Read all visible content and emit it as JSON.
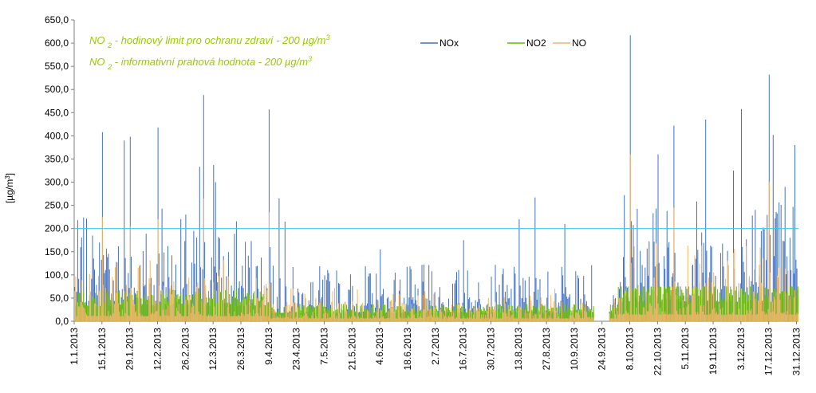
{
  "chart_data": {
    "type": "line",
    "title": "",
    "ylabel": "[µg/m³]",
    "ylabel_main": "[µg/m",
    "ylabel_sup": "3",
    "ylabel_close": "]",
    "ylim": [
      0,
      650
    ],
    "yticks": [
      "0,0",
      "50,0",
      "100,0",
      "150,0",
      "200,0",
      "250,0",
      "300,0",
      "350,0",
      "400,0",
      "450,0",
      "500,0",
      "550,0",
      "600,0",
      "650,0"
    ],
    "xlim": [
      "1.1.2013",
      "31.12.2013"
    ],
    "xticks": [
      "1.1.2013",
      "15.1.2013",
      "29.1.2013",
      "12.2.2013",
      "26.2.2013",
      "12.3.2013",
      "26.3.2013",
      "9.4.2013",
      "23.4.2013",
      "7.5.2013",
      "21.5.2013",
      "4.6.2013",
      "18.6.2013",
      "2.7.2013",
      "16.7.2013",
      "30.7.2013",
      "13.8.2013",
      "27.8.2013",
      "10.9.2013",
      "24.9.2013",
      "8.10.2013",
      "22.10.2013",
      "5.11.2013",
      "19.11.2013",
      "3.12.2013",
      "17.12.2013",
      "31.12.2013"
    ],
    "grid": false,
    "legend": "top-center",
    "limit_line": {
      "value": 200,
      "color": "#33CCEE"
    },
    "annotations": [
      {
        "text": "NO",
        "sub": "2",
        "rest": " - hodinový limit pro ochranu zdraví - 200 µg/m",
        "sup": "3"
      },
      {
        "text": "NO",
        "sub": "2",
        "rest": " - informativní prahová hodnota - 200 µg/m",
        "sup": "3"
      }
    ],
    "annotation_color": "#99CC00",
    "series": [
      {
        "name": "NOx",
        "color": "#4472C4",
        "peaks": [
          [
            "15.1.2013",
            408
          ],
          [
            "26.1.2013",
            390
          ],
          [
            "29.1.2013",
            398
          ],
          [
            "12.2.2013",
            418
          ],
          [
            "14.2.2013",
            243
          ],
          [
            "26.2.2013",
            230
          ],
          [
            "5.3.2013",
            333
          ],
          [
            "7.3.2013",
            488
          ],
          [
            "12.3.2013",
            337
          ],
          [
            "13.3.2013",
            300
          ],
          [
            "9.4.2013",
            457
          ],
          [
            "14.4.2013",
            265
          ],
          [
            "17.4.2013",
            215
          ],
          [
            "4.6.2013",
            155
          ],
          [
            "16.7.2013",
            175
          ],
          [
            "13.8.2013",
            220
          ],
          [
            "21.8.2013",
            267
          ],
          [
            "5.9.2013",
            210
          ],
          [
            "8.10.2013",
            617
          ],
          [
            "5.10.2013",
            272
          ],
          [
            "22.10.2013",
            360
          ],
          [
            "30.10.2013",
            422
          ],
          [
            "15.11.2013",
            435
          ],
          [
            "29.11.2013",
            325
          ],
          [
            "3.12.2013",
            458
          ],
          [
            "10.12.2013",
            240
          ],
          [
            "17.12.2013",
            532
          ],
          [
            "19.12.2013",
            402
          ],
          [
            "25.12.2013",
            290
          ],
          [
            "30.12.2013",
            380
          ]
        ]
      },
      {
        "name": "NO2",
        "color": "#66BB00",
        "peaks": []
      },
      {
        "name": "NO",
        "color": "#F4B560",
        "peaks": [
          [
            "15.1.2013",
            225
          ],
          [
            "29.1.2013",
            205
          ],
          [
            "12.2.2013",
            220
          ],
          [
            "7.3.2013",
            265
          ],
          [
            "9.4.2013",
            235
          ],
          [
            "8.10.2013",
            360
          ],
          [
            "30.10.2013",
            245
          ],
          [
            "17.12.2013",
            300
          ]
        ]
      }
    ]
  }
}
